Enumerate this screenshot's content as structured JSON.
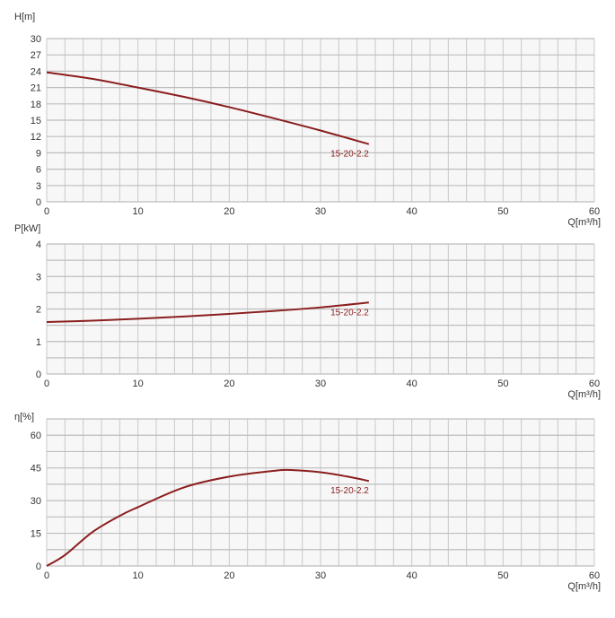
{
  "chart_data": [
    {
      "type": "line",
      "ylabel": "H[m]",
      "xlabel": "Q[m³/h]",
      "xlim": [
        0,
        60
      ],
      "ylim": [
        0,
        30
      ],
      "xticks": [
        0,
        10,
        20,
        30,
        40,
        50,
        60
      ],
      "yticks": [
        0,
        3,
        6,
        9,
        12,
        15,
        18,
        21,
        24,
        27,
        30
      ],
      "grid": true,
      "series": [
        {
          "name": "15-20-2.2",
          "color": "#8b1e1e",
          "x": [
            0,
            5,
            10,
            15,
            20,
            25,
            30,
            35.3
          ],
          "y": [
            23.8,
            22.6,
            21.0,
            19.3,
            17.4,
            15.3,
            13.1,
            10.6
          ]
        }
      ]
    },
    {
      "type": "line",
      "ylabel": "P[kW]",
      "xlabel": "Q[m³/h]",
      "xlim": [
        0,
        60
      ],
      "ylim": [
        0,
        4
      ],
      "xticks": [
        0,
        10,
        20,
        30,
        40,
        50,
        60
      ],
      "yticks": [
        0,
        1,
        2,
        3,
        4
      ],
      "grid": true,
      "series": [
        {
          "name": "15-20-2.2",
          "color": "#8b1e1e",
          "x": [
            0,
            5,
            10,
            15,
            20,
            25,
            30,
            35.3
          ],
          "y": [
            1.6,
            1.64,
            1.7,
            1.77,
            1.85,
            1.94,
            2.05,
            2.2
          ]
        }
      ]
    },
    {
      "type": "line",
      "ylabel": "η[%]",
      "xlabel": "Q[m³/h]",
      "xlim": [
        0,
        60
      ],
      "ylim": [
        0,
        67.5
      ],
      "xticks": [
        0,
        10,
        20,
        30,
        40,
        50,
        60
      ],
      "yticks": [
        0,
        15,
        30,
        45,
        60
      ],
      "grid": true,
      "series": [
        {
          "name": "15-20-2.2",
          "color": "#8b1e1e",
          "x": [
            0,
            2,
            5,
            8,
            10,
            15,
            20,
            25,
            27,
            30,
            33,
            35.3
          ],
          "y": [
            0,
            5,
            15.5,
            23,
            27,
            36,
            41,
            43.7,
            44,
            43,
            41,
            39
          ]
        }
      ]
    }
  ]
}
